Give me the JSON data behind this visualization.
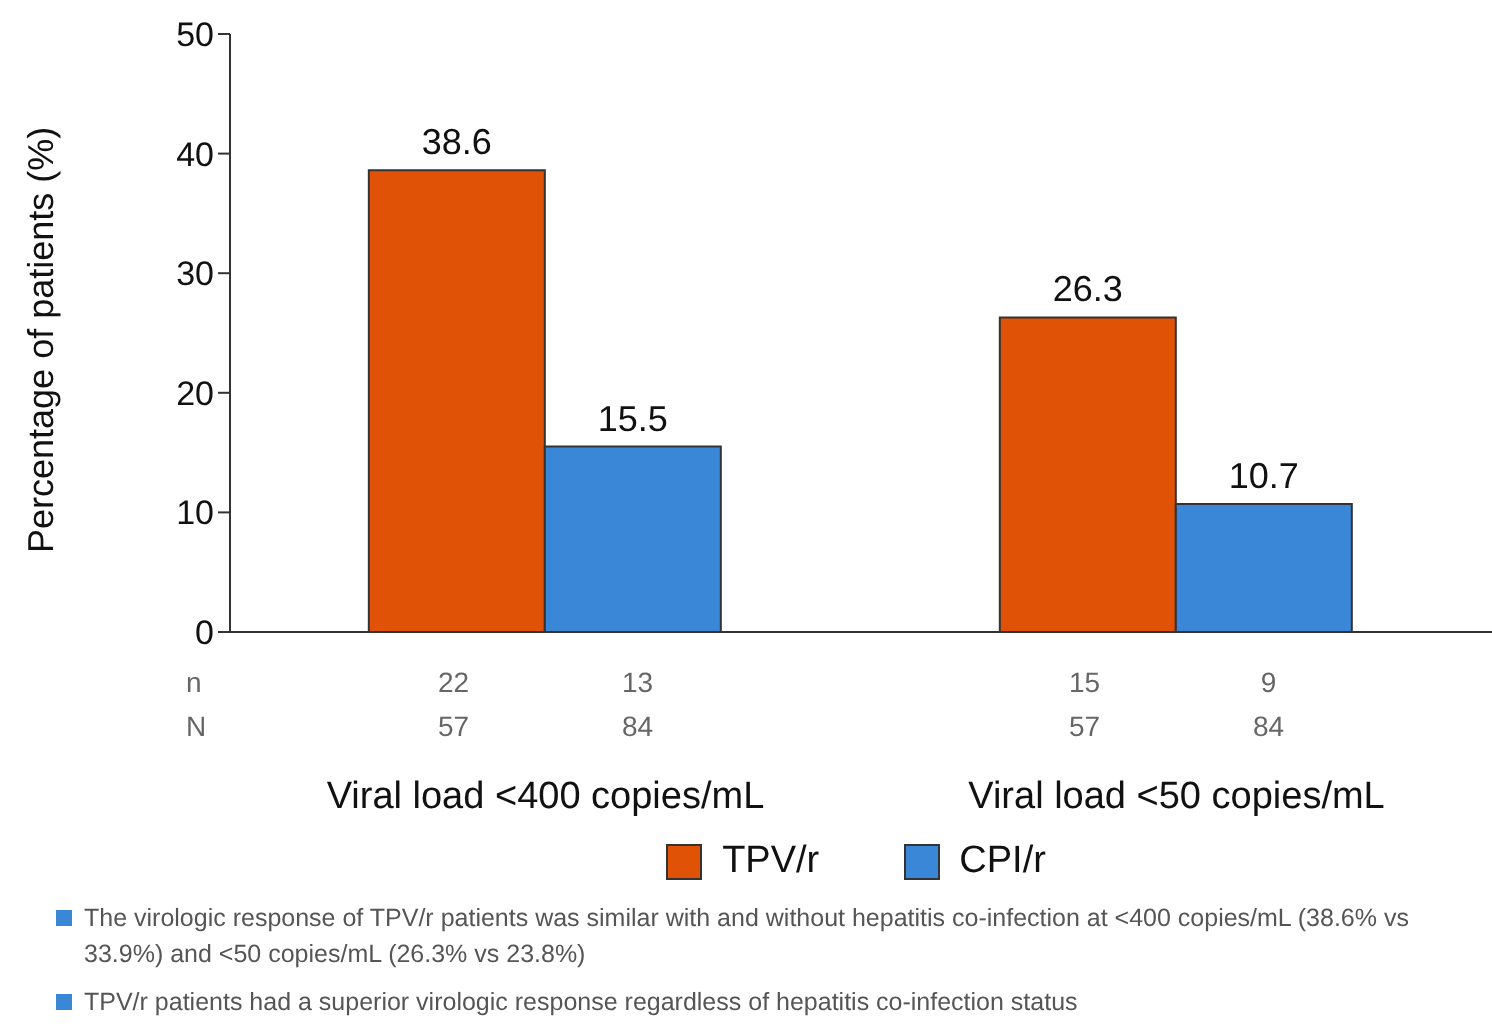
{
  "chart_data": {
    "type": "bar",
    "ylabel": "Percentage of patients (%)",
    "categories": [
      "Viral load <400 copies/mL",
      "Viral load <50 copies/mL"
    ],
    "series": [
      {
        "name": "TPV/r",
        "color": "#e05206",
        "values": [
          38.6,
          26.3
        ]
      },
      {
        "name": "CPI/r",
        "color": "#3a87d8",
        "values": [
          15.5,
          10.7
        ]
      }
    ],
    "ylim": [
      0,
      50
    ],
    "yticks": [
      0,
      10,
      20,
      30,
      40,
      50
    ],
    "grid": false,
    "legend": "bottom",
    "data_labels": true,
    "annotations": [
      "n",
      "N",
      "22",
      "57",
      "13",
      "84",
      "15",
      "57",
      "9",
      "84",
      "The virologic response of TPV/r patients was similar with and without hepatitis co-infection at <400 copies/mL (38.6% vs 33.9%) and <50 copies/mL (26.3% vs 23.8%)",
      "TPV/r patients had a superior virologic response regardless of hepatitis co-infection status"
    ]
  }
}
